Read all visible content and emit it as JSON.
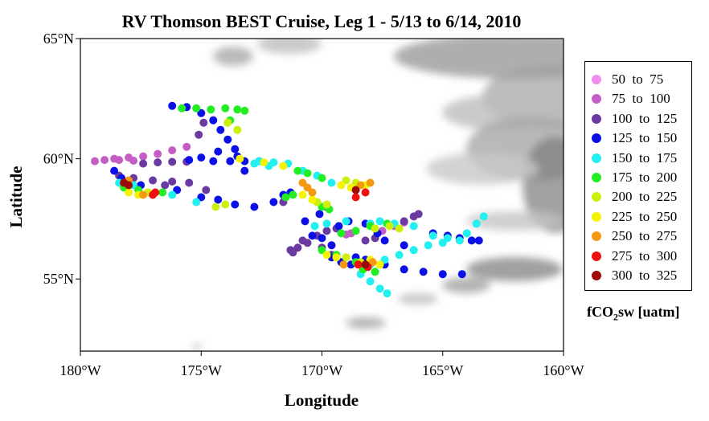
{
  "chart_data": {
    "type": "scatter",
    "title": "RV Thomson BEST Cruise, Leg 1 - 5/13 to 6/14, 2010",
    "xlabel": "Longitude",
    "ylabel": "Latitude",
    "xlim": [
      -180,
      -160
    ],
    "ylim": [
      52,
      65
    ],
    "x_ticks": [
      {
        "value": -180,
        "label": "180°W"
      },
      {
        "value": -175,
        "label": "175°W"
      },
      {
        "value": -170,
        "label": "170°W"
      },
      {
        "value": -165,
        "label": "165°W"
      },
      {
        "value": -160,
        "label": "160°W"
      }
    ],
    "y_ticks": [
      {
        "value": 55,
        "label": "55°N"
      },
      {
        "value": 60,
        "label": "60°N"
      },
      {
        "value": 65,
        "label": "65°N"
      }
    ],
    "grid": false,
    "legend_position": "right",
    "legend_title": {
      "main": "fCO",
      "sub": "2",
      "rest": "sw [uatm]"
    },
    "legend": [
      {
        "label": "50  to  75",
        "color": "#f08ef0"
      },
      {
        "label": "75  to  100",
        "color": "#c45ec4"
      },
      {
        "label": "100  to  125",
        "color": "#6a3aa0"
      },
      {
        "label": "125  to  150",
        "color": "#0a10e6"
      },
      {
        "label": "150  to  175",
        "color": "#22f0f0"
      },
      {
        "label": "175  to  200",
        "color": "#22ee22"
      },
      {
        "label": "200  to  225",
        "color": "#ccf00a"
      },
      {
        "label": "225  to  250",
        "color": "#f4f400"
      },
      {
        "label": "250  to  275",
        "color": "#f49a10"
      },
      {
        "label": "275  to  300",
        "color": "#f01010"
      },
      {
        "label": "300  to  325",
        "color": "#9c0a0a"
      }
    ],
    "series": [
      {
        "category": "75  to  100",
        "points": [
          [
            -179.4,
            59.9
          ],
          [
            -179.0,
            59.95
          ],
          [
            -178.6,
            60.0
          ],
          [
            -178.0,
            60.05
          ],
          [
            -177.4,
            60.1
          ],
          [
            -176.8,
            60.2
          ],
          [
            -176.2,
            60.35
          ],
          [
            -175.6,
            60.5
          ],
          [
            -178.4,
            59.95
          ],
          [
            -177.8,
            59.92
          ],
          [
            -169.0,
            56.85
          ],
          [
            -168.8,
            56.9
          ],
          [
            -167.5,
            57.0
          ],
          [
            -167.0,
            57.2
          ],
          [
            -166.6,
            57.35
          ]
        ]
      },
      {
        "category": "100  to  125",
        "points": [
          [
            -177.4,
            59.8
          ],
          [
            -176.8,
            59.85
          ],
          [
            -176.2,
            59.87
          ],
          [
            -175.6,
            59.88
          ],
          [
            -175.1,
            61.0
          ],
          [
            -174.9,
            61.5
          ],
          [
            -178.4,
            59.3
          ],
          [
            -177.8,
            59.2
          ],
          [
            -177.0,
            59.1
          ],
          [
            -176.2,
            59.05
          ],
          [
            -175.5,
            59.0
          ],
          [
            -174.8,
            58.7
          ],
          [
            -176.5,
            58.9
          ],
          [
            -171.6,
            58.2
          ],
          [
            -171.3,
            56.2
          ],
          [
            -171.0,
            56.3
          ],
          [
            -170.6,
            56.5
          ],
          [
            -170.2,
            56.8
          ],
          [
            -169.8,
            57.0
          ],
          [
            -169.4,
            57.1
          ],
          [
            -171.2,
            56.1
          ],
          [
            -170.0,
            56.3
          ],
          [
            -169.6,
            56.0
          ],
          [
            -170.8,
            56.6
          ],
          [
            -166.6,
            57.4
          ],
          [
            -166.2,
            57.6
          ],
          [
            -166.0,
            57.7
          ],
          [
            -168.2,
            56.6
          ],
          [
            -167.8,
            56.7
          ]
        ]
      },
      {
        "category": "125  to  150",
        "points": [
          [
            -176.2,
            62.2
          ],
          [
            -175.6,
            62.15
          ],
          [
            -175.0,
            61.9
          ],
          [
            -174.5,
            61.6
          ],
          [
            -174.2,
            61.2
          ],
          [
            -173.9,
            60.8
          ],
          [
            -173.6,
            60.4
          ],
          [
            -174.3,
            60.3
          ],
          [
            -175.0,
            60.05
          ],
          [
            -175.5,
            59.95
          ],
          [
            -174.5,
            59.9
          ],
          [
            -173.8,
            59.9
          ],
          [
            -173.2,
            59.9
          ],
          [
            -172.6,
            59.9
          ],
          [
            -173.5,
            60.1
          ],
          [
            -173.2,
            59.5
          ],
          [
            -178.6,
            59.5
          ],
          [
            -178.3,
            59.2
          ],
          [
            -177.5,
            58.9
          ],
          [
            -176.0,
            58.7
          ],
          [
            -175.0,
            58.4
          ],
          [
            -174.3,
            58.3
          ],
          [
            -173.6,
            58.1
          ],
          [
            -172.8,
            58.0
          ],
          [
            -172.0,
            58.2
          ],
          [
            -171.6,
            58.5
          ],
          [
            -171.3,
            58.6
          ],
          [
            -170.4,
            56.8
          ],
          [
            -170.7,
            57.4
          ],
          [
            -170.1,
            57.7
          ],
          [
            -169.8,
            58.0
          ],
          [
            -169.3,
            57.2
          ],
          [
            -168.9,
            57.4
          ],
          [
            -168.2,
            57.3
          ],
          [
            -167.7,
            56.9
          ],
          [
            -167.4,
            56.6
          ],
          [
            -166.6,
            56.4
          ],
          [
            -168.6,
            55.9
          ],
          [
            -168.2,
            55.8
          ],
          [
            -167.4,
            55.6
          ],
          [
            -166.6,
            55.4
          ],
          [
            -165.8,
            55.3
          ],
          [
            -165.0,
            55.2
          ],
          [
            -164.2,
            55.2
          ],
          [
            -169.6,
            55.9
          ],
          [
            -169.2,
            55.7
          ],
          [
            -168.8,
            55.6
          ],
          [
            -165.4,
            56.9
          ],
          [
            -164.8,
            56.8
          ],
          [
            -164.3,
            56.7
          ],
          [
            -163.8,
            56.6
          ],
          [
            -163.5,
            56.6
          ],
          [
            -169.6,
            56.4
          ],
          [
            -170.0,
            56.7
          ]
        ]
      },
      {
        "category": "150  to  175",
        "points": [
          [
            -172.6,
            59.9
          ],
          [
            -172.0,
            59.85
          ],
          [
            -171.4,
            59.8
          ],
          [
            -170.8,
            59.5
          ],
          [
            -170.2,
            59.3
          ],
          [
            -169.6,
            59.0
          ],
          [
            -178.4,
            59.0
          ],
          [
            -177.8,
            58.9
          ],
          [
            -176.2,
            58.5
          ],
          [
            -175.2,
            58.2
          ],
          [
            -170.3,
            57.2
          ],
          [
            -169.8,
            57.3
          ],
          [
            -169.0,
            57.4
          ],
          [
            -168.0,
            57.3
          ],
          [
            -167.6,
            57.4
          ],
          [
            -167.0,
            57.3
          ],
          [
            -166.2,
            57.2
          ],
          [
            -165.4,
            56.8
          ],
          [
            -164.8,
            56.7
          ],
          [
            -164.0,
            56.9
          ],
          [
            -163.6,
            57.3
          ],
          [
            -163.3,
            57.6
          ],
          [
            -166.2,
            56.2
          ],
          [
            -165.6,
            56.4
          ],
          [
            -165.0,
            56.5
          ],
          [
            -164.3,
            56.6
          ],
          [
            -166.8,
            56.0
          ],
          [
            -167.4,
            55.8
          ],
          [
            -168.0,
            55.6
          ],
          [
            -168.4,
            55.2
          ],
          [
            -168.0,
            54.9
          ],
          [
            -167.6,
            54.6
          ],
          [
            -167.3,
            54.4
          ],
          [
            -172.2,
            59.7
          ],
          [
            -172.8,
            59.8
          ]
        ]
      },
      {
        "category": "175  to  200",
        "points": [
          [
            -175.8,
            62.1
          ],
          [
            -175.2,
            62.1
          ],
          [
            -174.6,
            62.05
          ],
          [
            -174.0,
            62.1
          ],
          [
            -173.5,
            62.05
          ],
          [
            -173.2,
            62.0
          ],
          [
            -173.8,
            61.6
          ],
          [
            -171.0,
            59.5
          ],
          [
            -170.6,
            59.4
          ],
          [
            -170.0,
            59.2
          ],
          [
            -178.2,
            58.8
          ],
          [
            -177.6,
            58.7
          ],
          [
            -176.6,
            58.6
          ],
          [
            -171.5,
            58.4
          ],
          [
            -171.2,
            58.5
          ],
          [
            -170.0,
            58.0
          ],
          [
            -169.7,
            57.9
          ],
          [
            -169.2,
            56.9
          ],
          [
            -168.6,
            57.0
          ],
          [
            -168.0,
            57.2
          ],
          [
            -167.3,
            57.3
          ],
          [
            -170.0,
            56.2
          ],
          [
            -169.4,
            56.0
          ],
          [
            -168.6,
            55.7
          ],
          [
            -167.8,
            55.3
          ],
          [
            -168.3,
            55.4
          ]
        ]
      },
      {
        "category": "200  to  225",
        "points": [
          [
            -173.5,
            61.2
          ],
          [
            -173.9,
            61.5
          ],
          [
            -174.4,
            58.0
          ],
          [
            -174.0,
            58.1
          ],
          [
            -170.2,
            58.2
          ],
          [
            -169.8,
            58.1
          ],
          [
            -169.0,
            59.1
          ],
          [
            -168.6,
            59.0
          ],
          [
            -167.8,
            57.1
          ],
          [
            -167.2,
            57.2
          ],
          [
            -166.8,
            57.1
          ],
          [
            -177.2,
            58.6
          ],
          [
            -169.0,
            55.9
          ],
          [
            -168.4,
            55.7
          ]
        ]
      },
      {
        "category": "225  to  250",
        "points": [
          [
            -173.4,
            60.0
          ],
          [
            -172.4,
            59.85
          ],
          [
            -171.6,
            59.7
          ],
          [
            -169.2,
            58.9
          ],
          [
            -168.8,
            58.8
          ],
          [
            -168.2,
            58.9
          ],
          [
            -178.0,
            58.6
          ],
          [
            -177.6,
            58.5
          ],
          [
            -170.8,
            58.5
          ],
          [
            -170.4,
            58.3
          ],
          [
            -169.8,
            56.0
          ],
          [
            -169.4,
            55.9
          ],
          [
            -168.0,
            55.8
          ],
          [
            -167.6,
            55.6
          ]
        ]
      },
      {
        "category": "250  to  275",
        "points": [
          [
            -168.4,
            58.9
          ],
          [
            -168.0,
            59.0
          ],
          [
            -170.8,
            59.0
          ],
          [
            -170.6,
            58.8
          ],
          [
            -170.4,
            58.6
          ],
          [
            -178.0,
            59.1
          ],
          [
            -177.4,
            58.5
          ],
          [
            -169.1,
            55.6
          ],
          [
            -167.9,
            55.7
          ]
        ]
      },
      {
        "category": "275  to  300",
        "points": [
          [
            -168.2,
            58.6
          ],
          [
            -168.6,
            58.4
          ],
          [
            -168.5,
            55.6
          ],
          [
            -168.1,
            55.5
          ],
          [
            -176.9,
            58.6
          ],
          [
            -177.0,
            58.5
          ]
        ]
      },
      {
        "category": "300  to  325",
        "points": [
          [
            -178.2,
            59.0
          ],
          [
            -178.0,
            58.9
          ],
          [
            -168.6,
            58.7
          ],
          [
            -168.2,
            55.6
          ]
        ]
      }
    ]
  }
}
